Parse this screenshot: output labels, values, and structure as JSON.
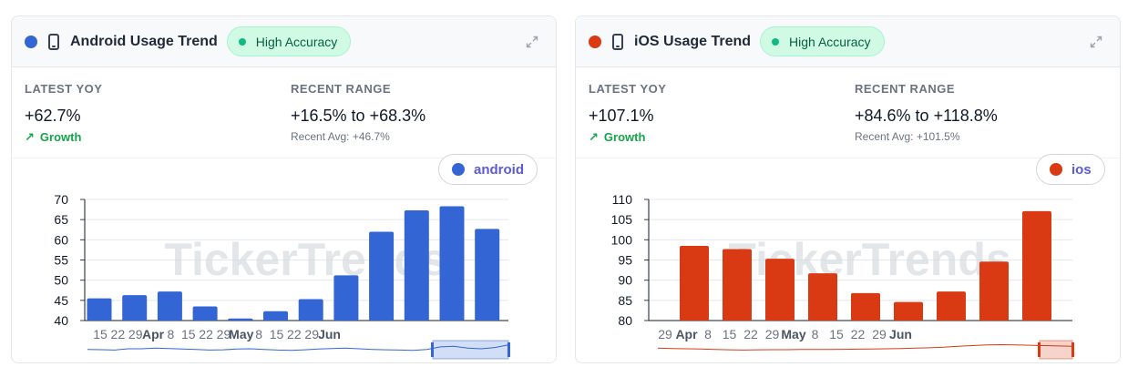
{
  "cards": [
    {
      "title": "Android Usage Trend",
      "badge": "High Accuracy",
      "accent": "#3465d4",
      "icon": "phone-icon",
      "latest_yoy_label": "LATEST YOY",
      "latest_yoy_value": "+62.7%",
      "growth_label": "Growth",
      "recent_range_label": "RECENT RANGE",
      "recent_range_value": "+16.5% to +68.3%",
      "recent_avg": "Recent Avg: +46.7%",
      "legend": "android",
      "legend_color": "#5b21b6"
    },
    {
      "title": "iOS Usage Trend",
      "badge": "High Accuracy",
      "accent": "#d93a14",
      "icon": "phone-icon",
      "latest_yoy_label": "LATEST YOY",
      "latest_yoy_value": "+107.1%",
      "growth_label": "Growth",
      "recent_range_label": "RECENT RANGE",
      "recent_range_value": "+84.6% to +118.8%",
      "recent_avg": "Recent Avg: +101.5%",
      "legend": "ios",
      "legend_color": "#5b21b6"
    }
  ],
  "watermark": "TickerTrends",
  "chart_data": [
    {
      "type": "bar",
      "series": [
        {
          "name": "android",
          "values": [
            45.5,
            46.3,
            47.2,
            43.5,
            40.5,
            42.3,
            45.3,
            51.2,
            62.0,
            67.3,
            68.3,
            62.7
          ]
        }
      ],
      "ylim": [
        40,
        70
      ],
      "yticks": [
        40,
        45,
        50,
        55,
        60,
        65,
        70
      ],
      "xticks": [
        "15",
        "22",
        "29",
        "Apr",
        "8",
        "15",
        "22",
        "29",
        "May",
        "8",
        "15",
        "22",
        "29",
        "Jun"
      ],
      "color": "#3465d4"
    },
    {
      "type": "bar",
      "series": [
        {
          "name": "ios",
          "values": [
            98.5,
            97.7,
            95.3,
            91.7,
            86.8,
            84.6,
            87.2,
            94.6,
            107.1
          ]
        }
      ],
      "ylim": [
        80,
        110
      ],
      "yticks": [
        80,
        85,
        90,
        95,
        100,
        105,
        110
      ],
      "xticks": [
        "29",
        "Apr",
        "8",
        "15",
        "22",
        "29",
        "May",
        "8",
        "15",
        "22",
        "29",
        "Jun"
      ],
      "color": "#d93a14"
    }
  ]
}
